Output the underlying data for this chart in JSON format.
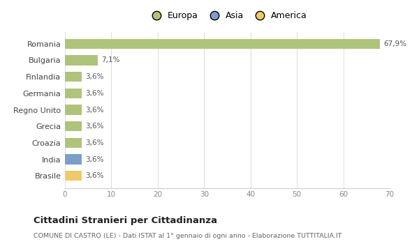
{
  "categories": [
    "Brasile",
    "India",
    "Croazia",
    "Grecia",
    "Regno Unito",
    "Germania",
    "Finlandia",
    "Bulgaria",
    "Romania"
  ],
  "values": [
    3.6,
    3.6,
    3.6,
    3.6,
    3.6,
    3.6,
    3.6,
    7.1,
    67.9
  ],
  "bar_colors": [
    "#f0c96a",
    "#7b9fc7",
    "#adc47a",
    "#adc47a",
    "#adc47a",
    "#adc47a",
    "#adc47a",
    "#adc47a",
    "#adc47a"
  ],
  "labels": [
    "3,6%",
    "3,6%",
    "3,6%",
    "3,6%",
    "3,6%",
    "3,6%",
    "3,6%",
    "7,1%",
    "67,9%"
  ],
  "legend": [
    {
      "label": "Europa",
      "color": "#adc47a"
    },
    {
      "label": "Asia",
      "color": "#7b9fc7"
    },
    {
      "label": "America",
      "color": "#f0c96a"
    }
  ],
  "xlim": [
    0,
    70
  ],
  "xticks": [
    0,
    10,
    20,
    30,
    40,
    50,
    60,
    70
  ],
  "title_bold": "Cittadini Stranieri per Cittadinanza",
  "subtitle": "COMUNE DI CASTRO (LE) - Dati ISTAT al 1° gennaio di ogni anno - Elaborazione TUTTITALIA.IT",
  "background_color": "#ffffff",
  "grid_color": "#e0e0e0",
  "bar_height": 0.6
}
